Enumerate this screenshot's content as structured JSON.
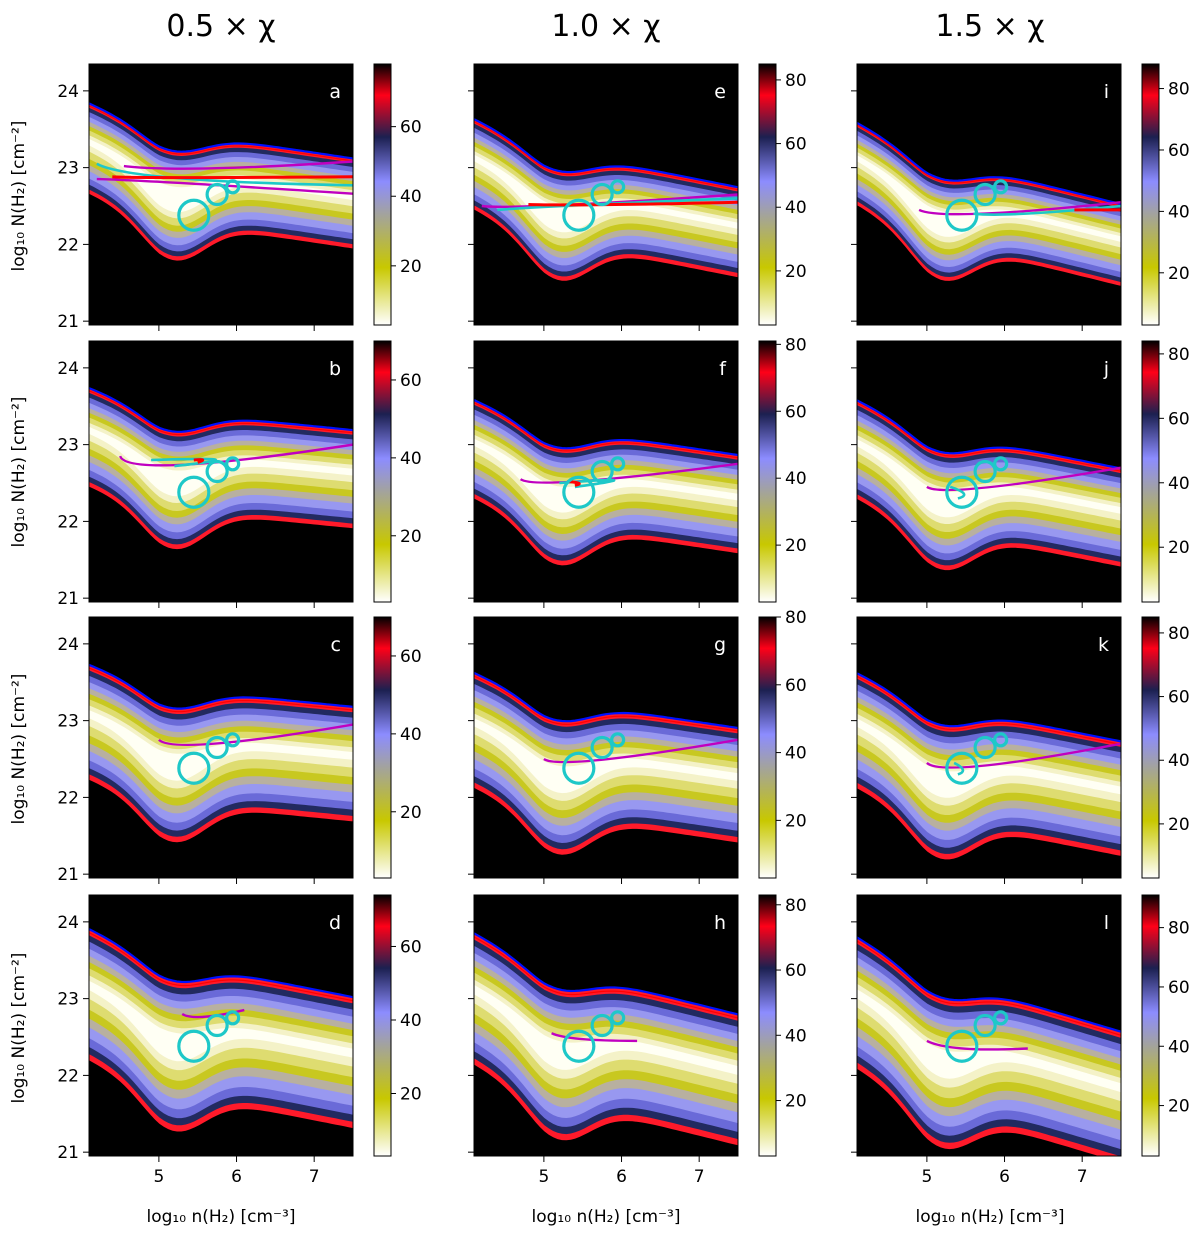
{
  "figure": {
    "column_titles": [
      "0.5 × χ",
      "1.0 × χ",
      "1.5 × χ"
    ],
    "x_axis_label": "log₁₀ n(H₂) [cm⁻³]",
    "y_axis_label": "log₁₀ N(H₂) [cm⁻²]"
  },
  "chart_data": {
    "type": "heatmap",
    "x": {
      "label": "log₁₀ n(H₂) [cm⁻³]",
      "range": [
        4.1,
        7.5
      ],
      "ticks": [
        5,
        6,
        7
      ]
    },
    "y": {
      "label": "log₁₀ N(H₂) [cm⁻²]",
      "range": [
        20.95,
        24.35
      ],
      "ticks": [
        21,
        22,
        23,
        24
      ]
    },
    "colormap": [
      "#ffffff",
      "#c8c800",
      "#8c8cff",
      "#1c2050",
      "#ff0018",
      "#000000"
    ],
    "contour_colors": {
      "magenta": "#c000c0",
      "cyan": "#1ec8c8",
      "blue": "#0010ff",
      "red": "#ff0000"
    },
    "observation_circles": [
      {
        "x": 5.45,
        "y": 22.38
      },
      {
        "x": 5.75,
        "y": 22.65
      },
      {
        "x": 5.95,
        "y": 22.75
      }
    ],
    "panels": [
      {
        "label": "a",
        "row": 0,
        "col": 0,
        "cbar_max": 78,
        "cbar_ticks": [
          20,
          40,
          60
        ],
        "ridge": 22.85,
        "width": 0.55,
        "ridge_shift": 0.0,
        "slope": -0.15,
        "pinch": 0.0,
        "magenta": [
          [
            4.2,
            22.85,
            4.75,
            22.84,
            7.5,
            22.66
          ],
          [
            4.55,
            23.02,
            5.3,
            22.93,
            7.5,
            23.08
          ]
        ],
        "cyan": [
          [
            4.2,
            23.05,
            4.6,
            22.82,
            7.5,
            22.77
          ]
        ],
        "red": [
          [
            4.4,
            22.88,
            4.65,
            22.86,
            7.5,
            22.88
          ]
        ]
      },
      {
        "label": "b",
        "row": 1,
        "col": 0,
        "cbar_max": 70,
        "cbar_ticks": [
          20,
          40,
          60
        ],
        "ridge": 22.8,
        "width": 0.6,
        "ridge_shift": 0.0,
        "slope": -0.1,
        "pinch": 0.0,
        "magenta": [
          [
            4.5,
            22.85,
            4.6,
            22.55,
            7.5,
            23.0
          ]
        ],
        "cyan": [
          [
            4.9,
            22.8,
            6.4,
            22.85,
            5.2,
            22.72
          ]
        ],
        "red": [
          [
            5.45,
            22.8,
            5.65,
            22.82,
            5.5,
            22.77
          ]
        ]
      },
      {
        "label": "c",
        "row": 2,
        "col": 0,
        "cbar_max": 70,
        "cbar_ticks": [
          20,
          40,
          60
        ],
        "ridge": 22.7,
        "width": 0.7,
        "ridge_shift": 0.0,
        "slope": -0.1,
        "pinch": 0.0,
        "magenta": [
          [
            5.0,
            22.75,
            5.2,
            22.55,
            7.5,
            22.95
          ]
        ],
        "cyan": [],
        "red": []
      },
      {
        "label": "d",
        "row": 3,
        "col": 0,
        "cbar_max": 74,
        "cbar_ticks": [
          20,
          40,
          60
        ],
        "ridge": 22.6,
        "width": 0.8,
        "ridge_shift": 0.0,
        "slope": -0.2,
        "pinch": 0.0,
        "magenta": [
          [
            5.3,
            22.8,
            5.45,
            22.7,
            6.1,
            22.85
          ]
        ],
        "cyan": [],
        "red": []
      },
      {
        "label": "e",
        "row": 0,
        "col": 1,
        "cbar_max": 85,
        "cbar_ticks": [
          20,
          40,
          60,
          80
        ],
        "ridge": 22.55,
        "width": 0.55,
        "ridge_shift": 0.0,
        "slope": -0.2,
        "pinch": 0.0,
        "magenta": [
          [
            4.2,
            22.5,
            4.6,
            22.45,
            7.5,
            22.65
          ]
        ],
        "cyan": [
          [
            4.4,
            22.45,
            5.0,
            22.5,
            7.5,
            22.6
          ]
        ],
        "red": [
          [
            4.8,
            22.52,
            5.4,
            22.5,
            7.5,
            22.55
          ]
        ]
      },
      {
        "label": "f",
        "row": 1,
        "col": 1,
        "cbar_max": 81,
        "cbar_ticks": [
          20,
          40,
          60,
          80
        ],
        "ridge": 22.55,
        "width": 0.6,
        "ridge_shift": 0.0,
        "slope": -0.15,
        "pinch": 0.0,
        "magenta": [
          [
            4.7,
            22.55,
            4.9,
            22.4,
            7.5,
            22.75
          ]
        ],
        "cyan": [
          [
            5.2,
            22.5,
            6.5,
            22.6,
            5.4,
            22.45
          ]
        ],
        "red": [
          [
            5.3,
            22.52,
            5.55,
            22.5,
            5.4,
            22.47
          ]
        ]
      },
      {
        "label": "g",
        "row": 2,
        "col": 1,
        "cbar_max": 80,
        "cbar_ticks": [
          20,
          40,
          60,
          80
        ],
        "ridge": 22.5,
        "width": 0.7,
        "ridge_shift": 0.0,
        "slope": -0.15,
        "pinch": 0.0,
        "magenta": [
          [
            5.0,
            22.5,
            5.2,
            22.35,
            7.5,
            22.75
          ]
        ],
        "cyan": [],
        "red": []
      },
      {
        "label": "h",
        "row": 3,
        "col": 1,
        "cbar_max": 83,
        "cbar_ticks": [
          20,
          40,
          60,
          80
        ],
        "ridge": 22.45,
        "width": 0.8,
        "ridge_shift": 0.0,
        "slope": -0.25,
        "pinch": 0.0,
        "magenta": [
          [
            5.1,
            22.55,
            5.3,
            22.45,
            6.2,
            22.45
          ]
        ],
        "cyan": [],
        "red": []
      },
      {
        "label": "i",
        "row": 0,
        "col": 2,
        "cbar_max": 88,
        "cbar_ticks": [
          20,
          40,
          60,
          80
        ],
        "ridge": 22.45,
        "width": 0.5,
        "ridge_shift": 0.0,
        "slope": -0.25,
        "pinch": 0.0,
        "magenta": [
          [
            4.9,
            22.45,
            5.2,
            22.3,
            7.5,
            22.55
          ]
        ],
        "cyan": [
          [
            5.6,
            22.4,
            6.0,
            22.35,
            7.5,
            22.5
          ]
        ],
        "red": [
          [
            6.9,
            22.45,
            7.2,
            22.45,
            7.5,
            22.45
          ]
        ]
      },
      {
        "label": "j",
        "row": 1,
        "col": 2,
        "cbar_max": 84,
        "cbar_ticks": [
          20,
          40,
          60,
          80
        ],
        "ridge": 22.45,
        "width": 0.6,
        "ridge_shift": 0.0,
        "slope": -0.2,
        "pinch": 0.0,
        "magenta": [
          [
            5.0,
            22.45,
            5.2,
            22.3,
            7.5,
            22.7
          ]
        ],
        "cyan": [
          [
            5.3,
            22.45,
            5.6,
            22.35,
            5.4,
            22.3
          ]
        ],
        "red": []
      },
      {
        "label": "k",
        "row": 2,
        "col": 2,
        "cbar_max": 85,
        "cbar_ticks": [
          20,
          40,
          60,
          80
        ],
        "ridge": 22.4,
        "width": 0.7,
        "ridge_shift": 0.0,
        "slope": -0.2,
        "pinch": 0.0,
        "magenta": [
          [
            5.0,
            22.45,
            5.2,
            22.25,
            7.5,
            22.7
          ]
        ],
        "cyan": [
          [
            5.35,
            22.45,
            5.55,
            22.35,
            5.4,
            22.3
          ]
        ],
        "red": []
      },
      {
        "label": "l",
        "row": 3,
        "col": 2,
        "cbar_max": 91,
        "cbar_ticks": [
          20,
          40,
          60,
          80
        ],
        "ridge": 22.3,
        "width": 0.8,
        "ridge_shift": 0.0,
        "slope": -0.3,
        "pinch": 0.0,
        "magenta": [
          [
            5.0,
            22.45,
            5.3,
            22.3,
            6.3,
            22.35
          ]
        ],
        "cyan": [],
        "red": []
      }
    ]
  }
}
